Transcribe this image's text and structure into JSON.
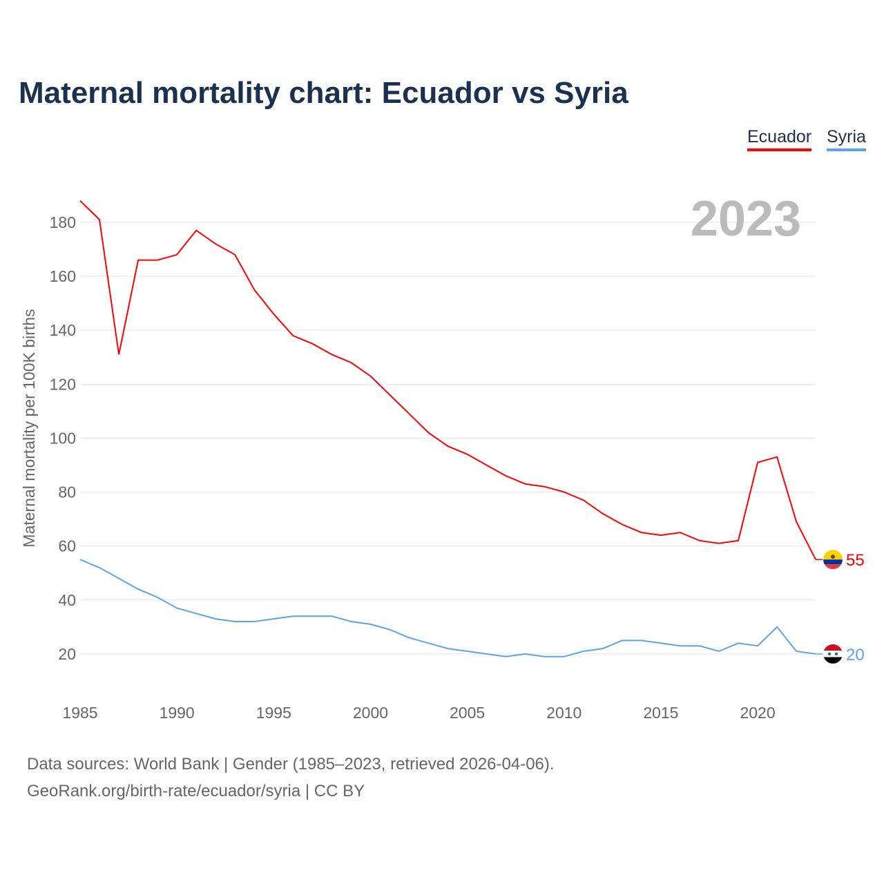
{
  "chart_data": {
    "type": "line",
    "title": "Maternal mortality chart: Ecuador vs Syria",
    "ylabel": "Maternal mortality per 100K births",
    "xlabel": "",
    "year_label": "2023",
    "ylim": [
      0,
      190
    ],
    "xlim": [
      1985,
      2023
    ],
    "yticks": [
      20,
      40,
      60,
      80,
      100,
      120,
      140,
      160,
      180
    ],
    "xticks": [
      1985,
      1990,
      1995,
      2000,
      2005,
      2010,
      2015,
      2020
    ],
    "grid": true,
    "legend_position": "top-right",
    "x": [
      1985,
      1986,
      1987,
      1988,
      1989,
      1990,
      1991,
      1992,
      1993,
      1994,
      1995,
      1996,
      1997,
      1998,
      1999,
      2000,
      2001,
      2002,
      2003,
      2004,
      2005,
      2006,
      2007,
      2008,
      2009,
      2010,
      2011,
      2012,
      2013,
      2014,
      2015,
      2016,
      2017,
      2018,
      2019,
      2020,
      2021,
      2022,
      2023
    ],
    "series": [
      {
        "name": "Ecuador",
        "color": "#ff0000",
        "end_label": "55",
        "values": [
          188,
          181,
          131,
          166,
          166,
          168,
          177,
          172,
          168,
          155,
          146,
          138,
          135,
          131,
          128,
          123,
          116,
          109,
          102,
          97,
          94,
          90,
          86,
          83,
          82,
          80,
          77,
          72,
          68,
          65,
          64,
          65,
          62,
          61,
          62,
          91,
          93,
          69,
          55
        ]
      },
      {
        "name": "Syria",
        "color": "#5ba3f0",
        "end_label": "20",
        "values": [
          55,
          52,
          48,
          44,
          41,
          37,
          35,
          33,
          32,
          32,
          33,
          34,
          34,
          34,
          32,
          31,
          29,
          26,
          24,
          22,
          21,
          20,
          19,
          20,
          19,
          19,
          21,
          22,
          25,
          25,
          24,
          23,
          23,
          21,
          24,
          23,
          30,
          21,
          20
        ]
      }
    ]
  },
  "footer": {
    "line1": "Data sources: World Bank | Gender (1985–2023, retrieved 2026-04-06).",
    "line2": "GeoRank.org/birth-rate/ecuador/syria | CC BY"
  }
}
